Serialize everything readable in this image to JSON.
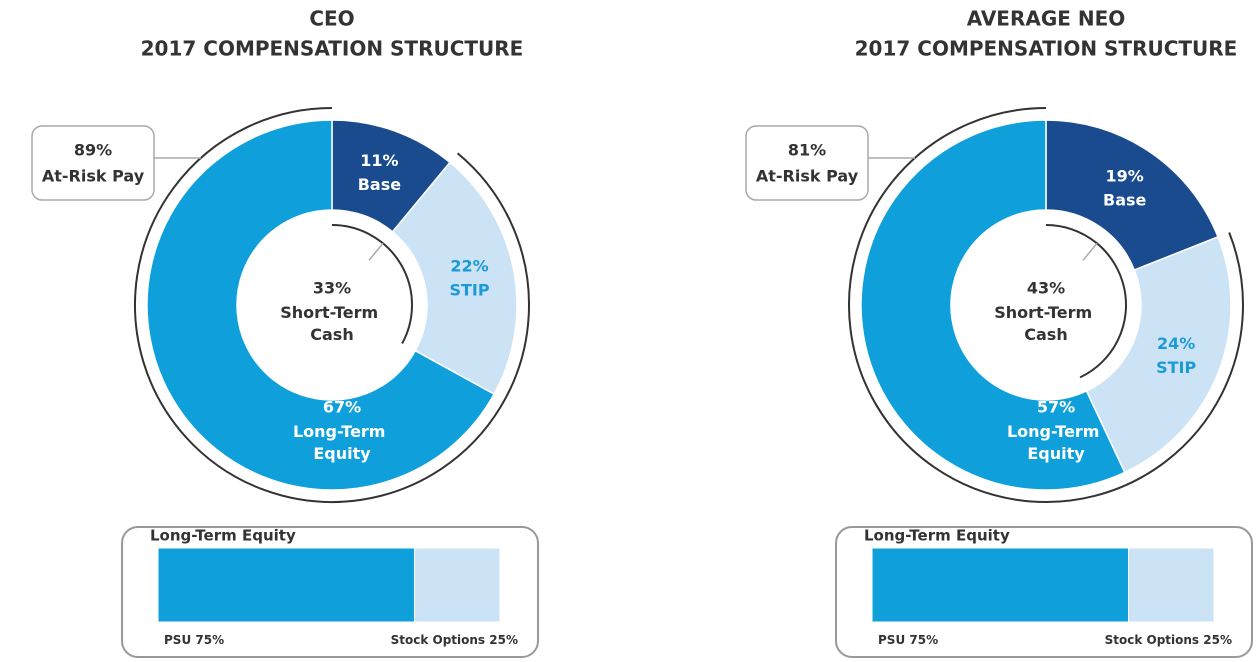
{
  "chart_data": [
    {
      "type": "donut",
      "title": [
        "CEO",
        "2017 COMPENSATION STRUCTURE"
      ],
      "categories": [
        "Base",
        "STIP",
        "Long-Term Equity"
      ],
      "values": [
        11,
        22,
        67
      ],
      "value_labels": [
        "11%",
        "22%",
        "67%"
      ],
      "colors": [
        "#1a4b8f",
        "#cce3f6",
        "#0fa0dc"
      ],
      "label_colors": [
        "#ffffff",
        "#1a9ad6",
        "#ffffff"
      ],
      "at_risk": {
        "value": 89,
        "value_label": "89%",
        "label": "At-Risk Pay"
      },
      "short_term": {
        "value": 33,
        "value_label": "33%",
        "label": "Short-Term Cash"
      }
    },
    {
      "type": "stacked-bar",
      "title": "Long-Term Equity",
      "categories": [
        "PSU",
        "Stock Options"
      ],
      "values": [
        75,
        25
      ],
      "value_labels": [
        "75%",
        "25%"
      ],
      "colors": [
        "#0fa0dc",
        "#cce3f6"
      ]
    },
    {
      "type": "donut",
      "title": [
        "AVERAGE NEO",
        "2017 COMPENSATION STRUCTURE"
      ],
      "categories": [
        "Base",
        "STIP",
        "Long-Term Equity"
      ],
      "values": [
        19,
        24,
        57
      ],
      "value_labels": [
        "19%",
        "24%",
        "57%"
      ],
      "colors": [
        "#1a4b8f",
        "#cce3f6",
        "#0fa0dc"
      ],
      "label_colors": [
        "#ffffff",
        "#1a9ad6",
        "#ffffff"
      ],
      "at_risk": {
        "value": 81,
        "value_label": "81%",
        "label": "At-Risk Pay"
      },
      "short_term": {
        "value": 43,
        "value_label": "43%",
        "label": "Short-Term Cash"
      }
    },
    {
      "type": "stacked-bar",
      "title": "Long-Term Equity",
      "categories": [
        "PSU",
        "Stock Options"
      ],
      "values": [
        75,
        25
      ],
      "value_labels": [
        "75%",
        "25%"
      ],
      "colors": [
        "#0fa0dc",
        "#cce3f6"
      ]
    }
  ]
}
